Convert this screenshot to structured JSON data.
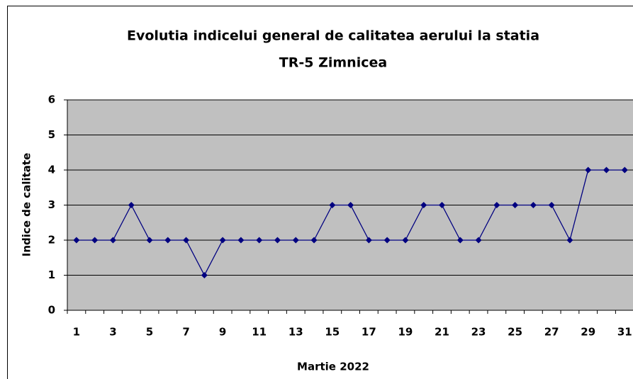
{
  "chart_data": {
    "type": "line",
    "title": [
      "Evolutia indicelui general de calitatea aerului la statia",
      "TR-5 Zimnicea"
    ],
    "x_label": "Martie 2022",
    "y_label": "Indice de calitate",
    "categories": [
      "1",
      null,
      "3",
      null,
      "5",
      null,
      "7",
      null,
      "9",
      null,
      "11",
      null,
      "13",
      null,
      "15",
      null,
      "17",
      null,
      "19",
      null,
      "21",
      null,
      "23",
      null,
      "25",
      null,
      "27",
      null,
      "29",
      null,
      "31"
    ],
    "series": [
      {
        "name": "Indice",
        "color": "#000080",
        "values": [
          2,
          2,
          2,
          3,
          2,
          2,
          2,
          1,
          2,
          2,
          2,
          2,
          2,
          2,
          3,
          3,
          2,
          2,
          2,
          3,
          3,
          2,
          2,
          3,
          3,
          3,
          3,
          2,
          4,
          4,
          4
        ]
      }
    ],
    "ylim": [
      0,
      6
    ],
    "yticks": [
      0,
      1,
      2,
      3,
      4,
      5,
      6
    ],
    "grid": true,
    "legend": false,
    "plot_background": "#c0c0c0"
  }
}
